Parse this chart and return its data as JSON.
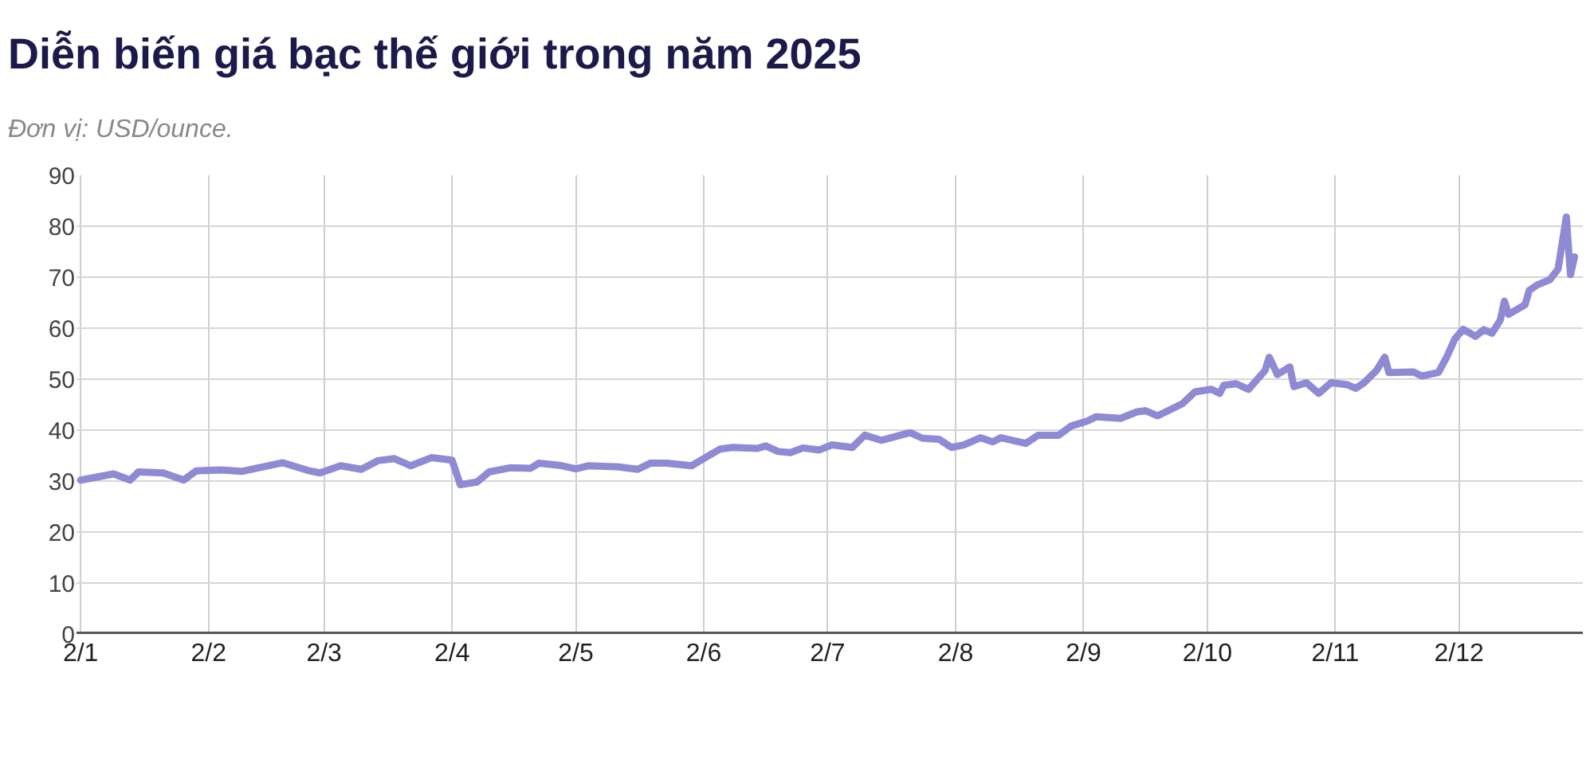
{
  "chart_data": {
    "type": "line",
    "title": "Diễn biến giá bạc thế giới trong năm 2025",
    "subtitle": "Đơn vị: USD/ounce.",
    "x": [
      "2025-01-02",
      "2025-01-10",
      "2025-01-14",
      "2025-01-16",
      "2025-01-22",
      "2025-01-27",
      "2025-01-30",
      "2025-02-05",
      "2025-02-10",
      "2025-02-20",
      "2025-02-26",
      "2025-03-01",
      "2025-03-06",
      "2025-03-11",
      "2025-03-15",
      "2025-03-19",
      "2025-03-23",
      "2025-03-28",
      "2025-04-02",
      "2025-04-04",
      "2025-04-08",
      "2025-04-11",
      "2025-04-16",
      "2025-04-21",
      "2025-04-23",
      "2025-04-28",
      "2025-05-02",
      "2025-05-05",
      "2025-05-12",
      "2025-05-17",
      "2025-05-20",
      "2025-05-24",
      "2025-05-30",
      "2025-06-03",
      "2025-06-06",
      "2025-06-09",
      "2025-06-15",
      "2025-06-17",
      "2025-06-20",
      "2025-06-23",
      "2025-06-26",
      "2025-06-30",
      "2025-07-03",
      "2025-07-08",
      "2025-07-11",
      "2025-07-15",
      "2025-07-22",
      "2025-07-25",
      "2025-07-29",
      "2025-08-01",
      "2025-08-04",
      "2025-08-08",
      "2025-08-11",
      "2025-08-13",
      "2025-08-19",
      "2025-08-22",
      "2025-08-27",
      "2025-08-30",
      "2025-09-03",
      "2025-09-05",
      "2025-09-11",
      "2025-09-15",
      "2025-09-17",
      "2025-09-20",
      "2025-09-26",
      "2025-09-29",
      "2025-10-03",
      "2025-10-05",
      "2025-10-06",
      "2025-10-09",
      "2025-10-12",
      "2025-10-16",
      "2025-10-17",
      "2025-10-19",
      "2025-10-22",
      "2025-10-23",
      "2025-10-26",
      "2025-10-29",
      "2025-11-01",
      "2025-11-05",
      "2025-11-07",
      "2025-11-09",
      "2025-11-12",
      "2025-11-14",
      "2025-11-15",
      "2025-11-21",
      "2025-11-23",
      "2025-11-27",
      "2025-11-29",
      "2025-12-01",
      "2025-12-03",
      "2025-12-06",
      "2025-12-08",
      "2025-12-10",
      "2025-12-12",
      "2025-12-13",
      "2025-12-14",
      "2025-12-18",
      "2025-12-19",
      "2025-12-21",
      "2025-12-24",
      "2025-12-26",
      "2025-12-28",
      "2025-12-29",
      "2025-12-30"
    ],
    "series": [
      {
        "color": "#8e8bd4",
        "values": [
          30.2,
          31.4,
          30.2,
          31.8,
          31.6,
          30.2,
          32.0,
          32.2,
          31.9,
          33.6,
          32.1,
          31.6,
          33.0,
          32.3,
          34.0,
          34.4,
          33.0,
          34.6,
          34.1,
          29.3,
          29.8,
          31.8,
          32.6,
          32.5,
          33.5,
          33.1,
          32.4,
          33.0,
          32.8,
          32.3,
          33.5,
          33.5,
          33.0,
          34.9,
          36.3,
          36.6,
          36.4,
          36.9,
          35.8,
          35.6,
          36.5,
          36.1,
          37.1,
          36.6,
          39.0,
          38.0,
          39.5,
          38.4,
          38.2,
          36.6,
          37.1,
          38.5,
          37.7,
          38.5,
          37.4,
          39.0,
          39.0,
          40.8,
          41.8,
          42.6,
          42.3,
          43.6,
          43.8,
          42.8,
          45.2,
          47.5,
          48.0,
          47.2,
          48.8,
          49.1,
          48.0,
          51.7,
          54.3,
          50.9,
          52.4,
          48.5,
          49.3,
          47.2,
          49.3,
          48.9,
          48.2,
          49.3,
          51.7,
          54.3,
          51.3,
          51.4,
          50.6,
          51.3,
          54.3,
          57.9,
          59.8,
          58.4,
          59.7,
          59.0,
          61.6,
          65.3,
          62.7,
          64.6,
          67.4,
          68.5,
          69.5,
          71.6,
          81.8,
          70.5,
          74.0
        ]
      }
    ],
    "xlim": [
      "2025-01-01",
      "2026-01-01"
    ],
    "xticks": [
      {
        "value": "2025-01-02",
        "label": "2/1"
      },
      {
        "value": "2025-02-02",
        "label": "2/2"
      },
      {
        "value": "2025-03-02",
        "label": "2/3"
      },
      {
        "value": "2025-04-02",
        "label": "2/4"
      },
      {
        "value": "2025-05-02",
        "label": "2/5"
      },
      {
        "value": "2025-06-02",
        "label": "2/6"
      },
      {
        "value": "2025-07-02",
        "label": "2/7"
      },
      {
        "value": "2025-08-02",
        "label": "2/8"
      },
      {
        "value": "2025-09-02",
        "label": "2/9"
      },
      {
        "value": "2025-10-02",
        "label": "2/10"
      },
      {
        "value": "2025-11-02",
        "label": "2/11"
      },
      {
        "value": "2025-12-02",
        "label": "2/12"
      }
    ],
    "ylim": [
      0,
      90
    ],
    "yticks": [
      0,
      10,
      20,
      30,
      40,
      50,
      60,
      70,
      80,
      90
    ],
    "grid": true,
    "marker": "none",
    "line_style": "solid"
  }
}
